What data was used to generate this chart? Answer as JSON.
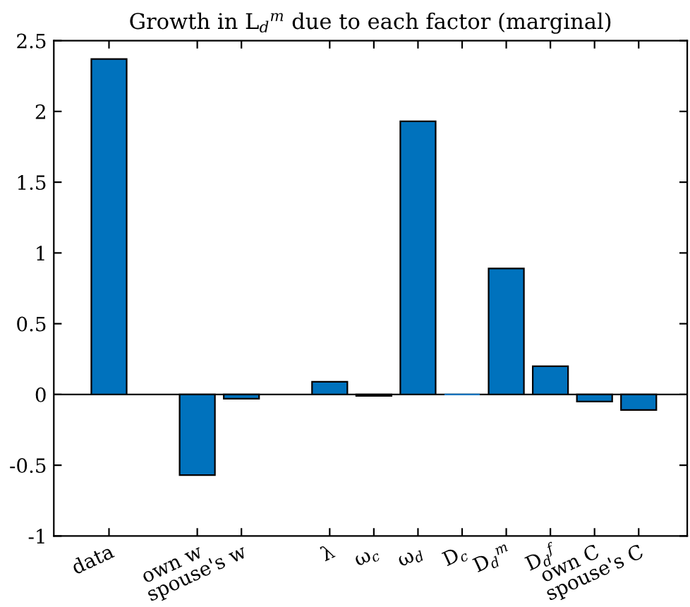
{
  "chart_data": {
    "type": "bar",
    "title": "Growth in L$_{d}$$^{m}$ due to each factor (marginal)",
    "categories": [
      "data",
      null,
      "own w",
      "spouse's w",
      null,
      "λ",
      "ω$_{c}$",
      "ω$_{d}$",
      "D$_{c}$",
      "D$_{d}$$^{m}$",
      "D$_{d}$$^{f}$",
      "own C",
      "spouse's C"
    ],
    "values": [
      2.37,
      null,
      -0.57,
      -0.03,
      null,
      0.09,
      -0.01,
      1.93,
      0,
      0.89,
      0.2,
      -0.05,
      -0.11
    ],
    "color": "#0072bd",
    "ylim": [
      -1,
      2.5
    ],
    "yticks": [
      -1,
      -0.5,
      0,
      0.5,
      1,
      1.5,
      2,
      2.5
    ],
    "grid": false,
    "ref_lines": [
      {
        "axis": "y",
        "value": 0,
        "color": "#000000"
      }
    ]
  }
}
